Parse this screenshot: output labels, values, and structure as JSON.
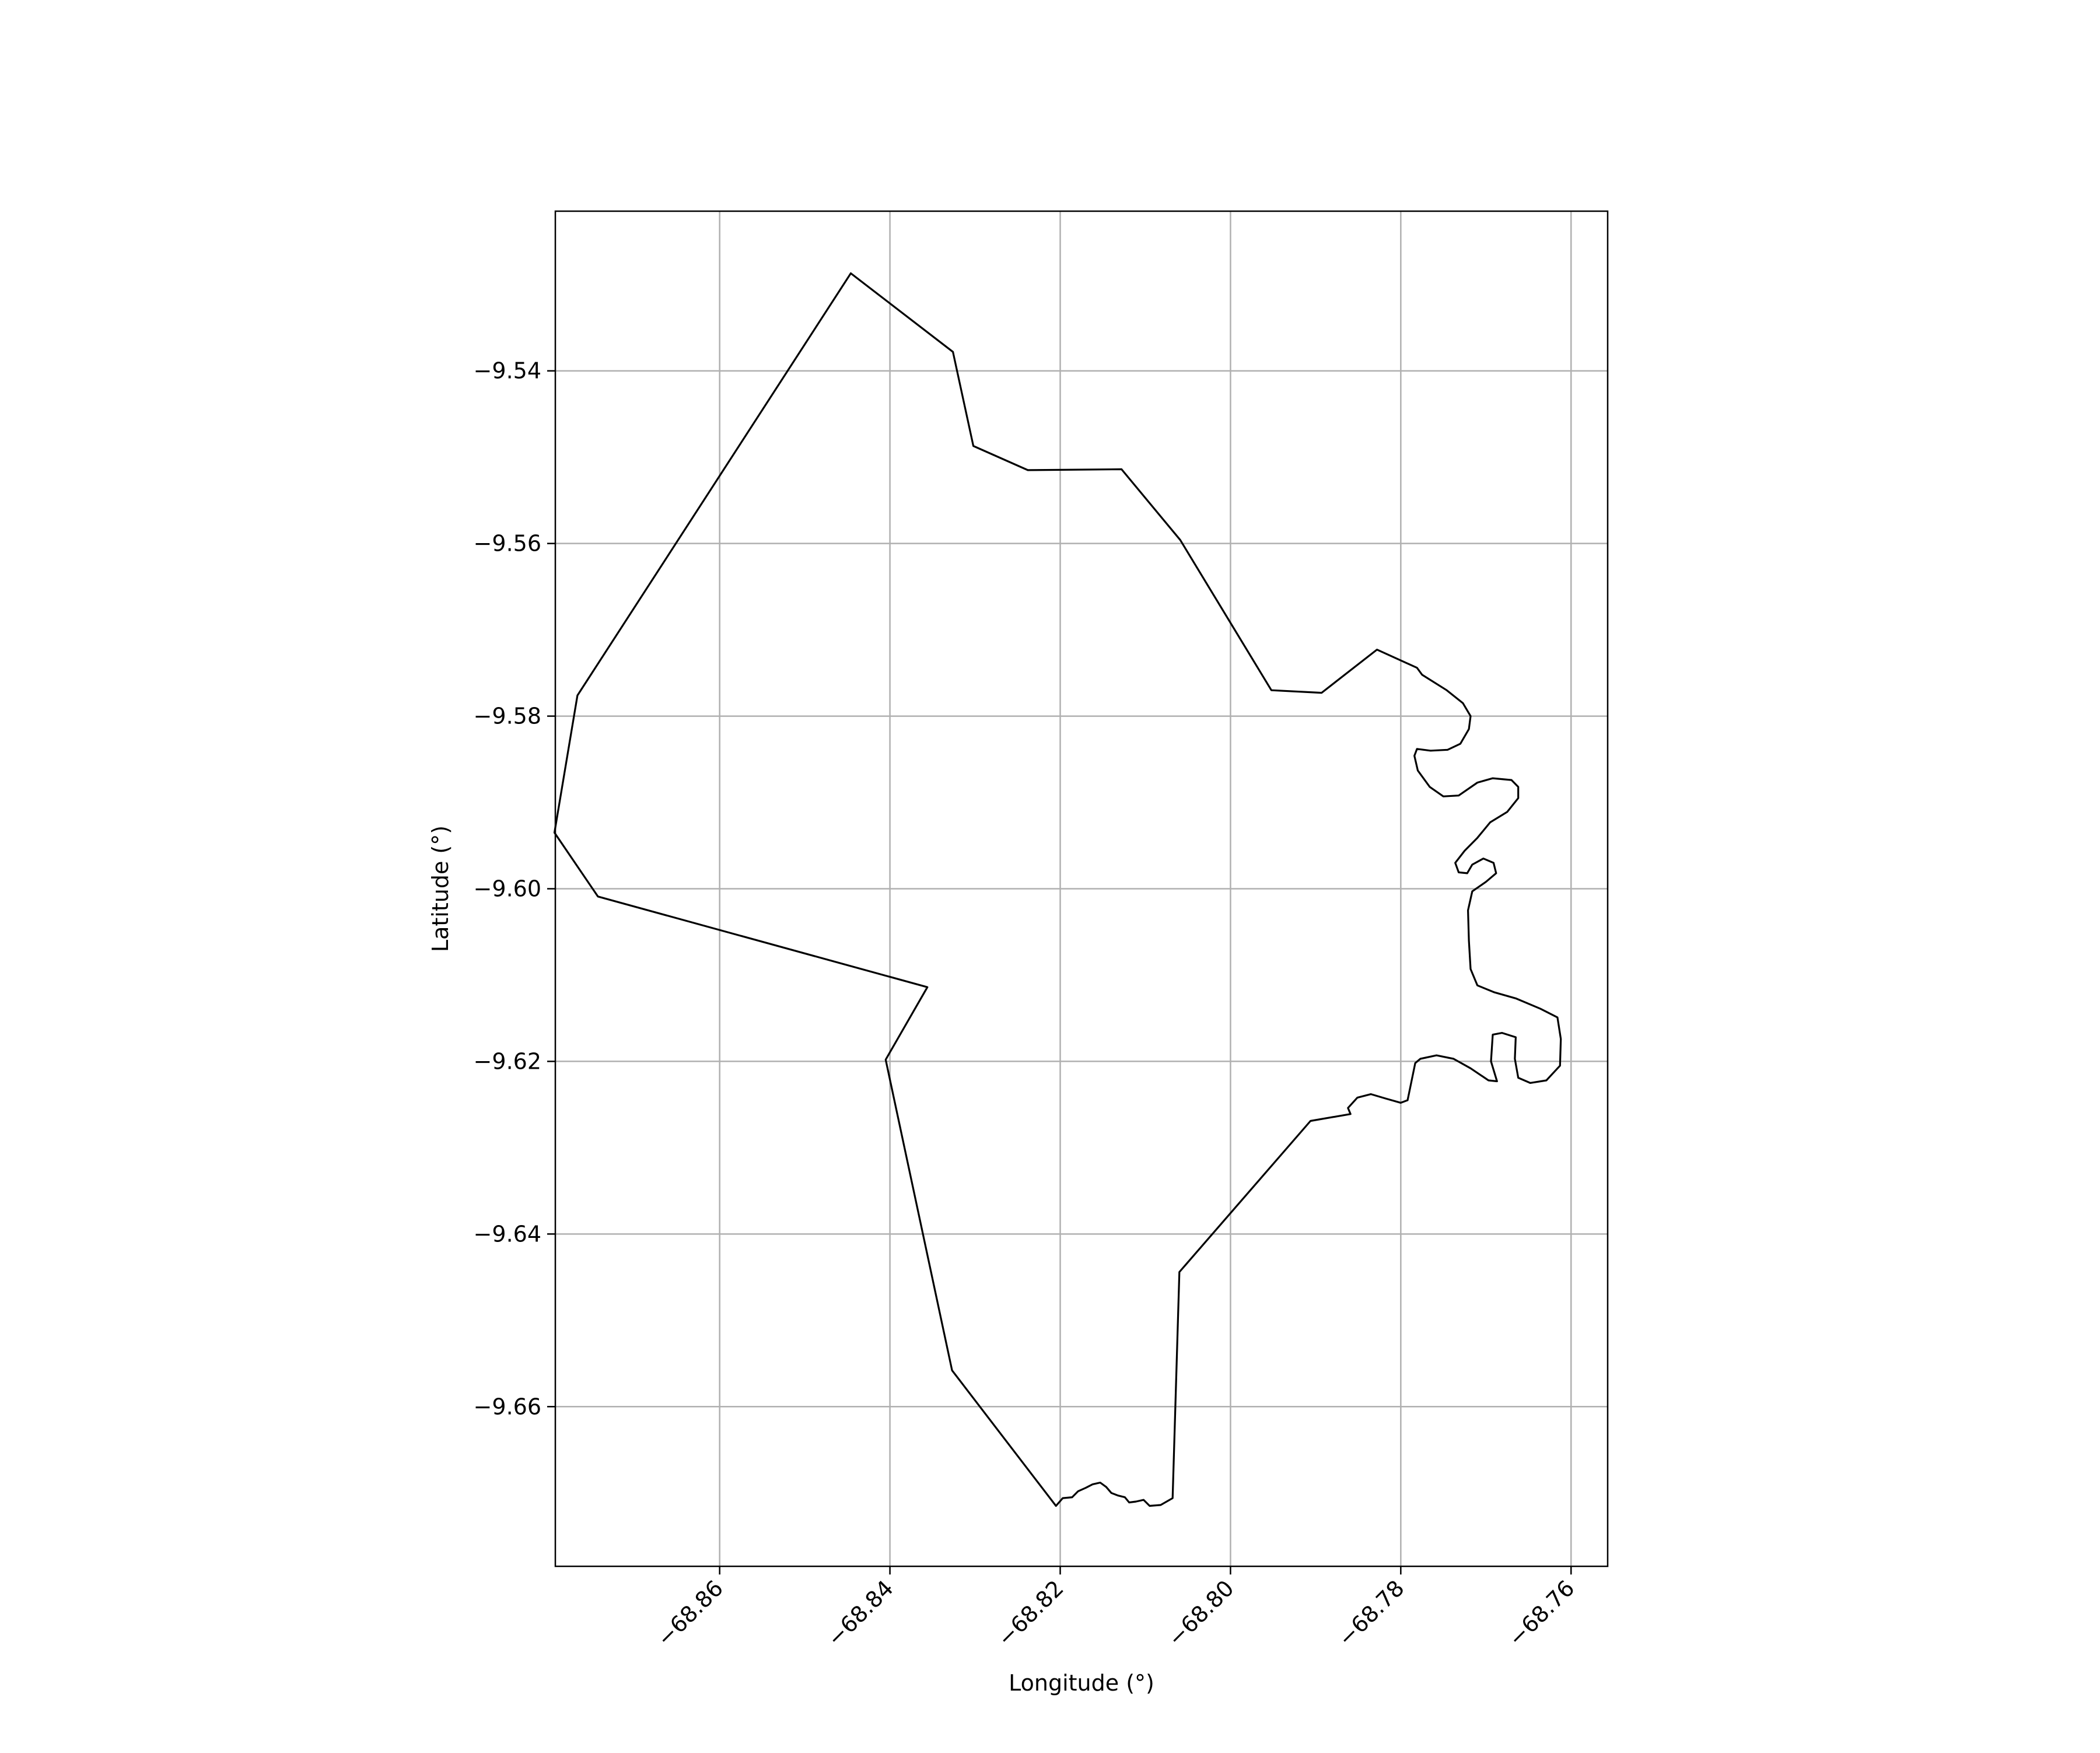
{
  "chart_data": {
    "type": "map",
    "xlabel": "Longitude (°)",
    "ylabel": "Latitude (°)",
    "xlim": [
      -68.8793,
      -68.7557
    ],
    "ylim": [
      -9.6785,
      -9.5215
    ],
    "grid": true,
    "x_ticks": [
      {
        "value": -68.86,
        "label": "−68.86"
      },
      {
        "value": -68.84,
        "label": "−68.84"
      },
      {
        "value": -68.82,
        "label": "−68.82"
      },
      {
        "value": -68.8,
        "label": "−68.80"
      },
      {
        "value": -68.78,
        "label": "−68.78"
      },
      {
        "value": -68.76,
        "label": "−68.76"
      }
    ],
    "y_ticks": [
      {
        "value": -9.54,
        "label": "−9.54"
      },
      {
        "value": -9.56,
        "label": "−9.56"
      },
      {
        "value": -9.58,
        "label": "−9.58"
      },
      {
        "value": -9.6,
        "label": "−9.60"
      },
      {
        "value": -9.62,
        "label": "−9.62"
      },
      {
        "value": -9.64,
        "label": "−9.64"
      },
      {
        "value": -9.66,
        "label": "−9.66"
      }
    ],
    "boundary": [
      [
        -68.8446,
        -9.5287
      ],
      [
        -68.8326,
        -9.5378
      ],
      [
        -68.8302,
        -9.5487
      ],
      [
        -68.8238,
        -9.5515
      ],
      [
        -68.8128,
        -9.5514
      ],
      [
        -68.8059,
        -9.5596
      ],
      [
        -68.7952,
        -9.577
      ],
      [
        -68.7893,
        -9.5773
      ],
      [
        -68.7828,
        -9.5723
      ],
      [
        -68.7781,
        -9.5744
      ],
      [
        -68.7775,
        -9.5752
      ],
      [
        -68.7746,
        -9.577
      ],
      [
        -68.7727,
        -9.5785
      ],
      [
        -68.7718,
        -9.58
      ],
      [
        -68.772,
        -9.5815
      ],
      [
        -68.773,
        -9.5832
      ],
      [
        -68.7745,
        -9.5839
      ],
      [
        -68.7765,
        -9.584
      ],
      [
        -68.7781,
        -9.5838
      ],
      [
        -68.7784,
        -9.5846
      ],
      [
        -68.778,
        -9.5863
      ],
      [
        -68.7766,
        -9.5882
      ],
      [
        -68.775,
        -9.5893
      ],
      [
        -68.7732,
        -9.5892
      ],
      [
        -68.771,
        -9.5877
      ],
      [
        -68.7692,
        -9.5872
      ],
      [
        -68.767,
        -9.5874
      ],
      [
        -68.7662,
        -9.5882
      ],
      [
        -68.7662,
        -9.5895
      ],
      [
        -68.7675,
        -9.5911
      ],
      [
        -68.7695,
        -9.5923
      ],
      [
        -68.771,
        -9.5941
      ],
      [
        -68.7725,
        -9.5956
      ],
      [
        -68.7736,
        -9.597
      ],
      [
        -68.7732,
        -9.5981
      ],
      [
        -68.7722,
        -9.5982
      ],
      [
        -68.7716,
        -9.5972
      ],
      [
        -68.7703,
        -9.5965
      ],
      [
        -68.7691,
        -9.597
      ],
      [
        -68.7688,
        -9.5982
      ],
      [
        -68.77,
        -9.5992
      ],
      [
        -68.7716,
        -9.6003
      ],
      [
        -68.7721,
        -9.6025
      ],
      [
        -68.772,
        -9.606
      ],
      [
        -68.7718,
        -9.6093
      ],
      [
        -68.771,
        -9.6112
      ],
      [
        -68.769,
        -9.612
      ],
      [
        -68.7665,
        -9.6127
      ],
      [
        -68.7636,
        -9.6139
      ],
      [
        -68.7616,
        -9.6149
      ],
      [
        -68.7612,
        -9.6174
      ],
      [
        -68.7613,
        -9.6205
      ],
      [
        -68.7629,
        -9.6222
      ],
      [
        -68.7648,
        -9.6225
      ],
      [
        -68.7662,
        -9.6219
      ],
      [
        -68.7666,
        -9.6197
      ],
      [
        -68.7665,
        -9.6172
      ],
      [
        -68.7681,
        -9.6167
      ],
      [
        -68.7692,
        -9.6169
      ],
      [
        -68.7694,
        -9.62
      ],
      [
        -68.7687,
        -9.6223
      ],
      [
        -68.7697,
        -9.6222
      ],
      [
        -68.7718,
        -9.6208
      ],
      [
        -68.7738,
        -9.6197
      ],
      [
        -68.7758,
        -9.6193
      ],
      [
        -68.7777,
        -9.6197
      ],
      [
        -68.7783,
        -9.6202
      ],
      [
        -68.7792,
        -9.6245
      ],
      [
        -68.78,
        -9.6248
      ],
      [
        -68.7818,
        -9.6243
      ],
      [
        -68.7835,
        -9.6238
      ],
      [
        -68.7851,
        -9.6242
      ],
      [
        -68.7862,
        -9.6254
      ],
      [
        -68.7859,
        -9.6261
      ],
      [
        -68.7906,
        -9.6269
      ],
      [
        -68.806,
        -9.6444
      ],
      [
        -68.8068,
        -9.6706
      ],
      [
        -68.8082,
        -9.6714
      ],
      [
        -68.8095,
        -9.6715
      ],
      [
        -68.8102,
        -9.6708
      ],
      [
        -68.8111,
        -9.671
      ],
      [
        -68.8119,
        -9.6711
      ],
      [
        -68.8124,
        -9.6705
      ],
      [
        -68.8132,
        -9.6703
      ],
      [
        -68.814,
        -9.67
      ],
      [
        -68.8146,
        -9.6693
      ],
      [
        -68.8153,
        -9.6688
      ],
      [
        -68.8162,
        -9.669
      ],
      [
        -68.817,
        -9.6694
      ],
      [
        -68.8179,
        -9.6698
      ],
      [
        -68.8186,
        -9.6705
      ],
      [
        -68.8197,
        -9.6706
      ],
      [
        -68.8205,
        -9.6715
      ],
      [
        -68.8327,
        -9.6558
      ],
      [
        -68.8405,
        -9.6198
      ],
      [
        -68.8356,
        -9.6114
      ],
      [
        -68.8743,
        -9.6009
      ],
      [
        -68.8794,
        -9.5935
      ],
      [
        -68.8767,
        -9.5776
      ],
      [
        -68.8446,
        -9.5287
      ]
    ]
  }
}
